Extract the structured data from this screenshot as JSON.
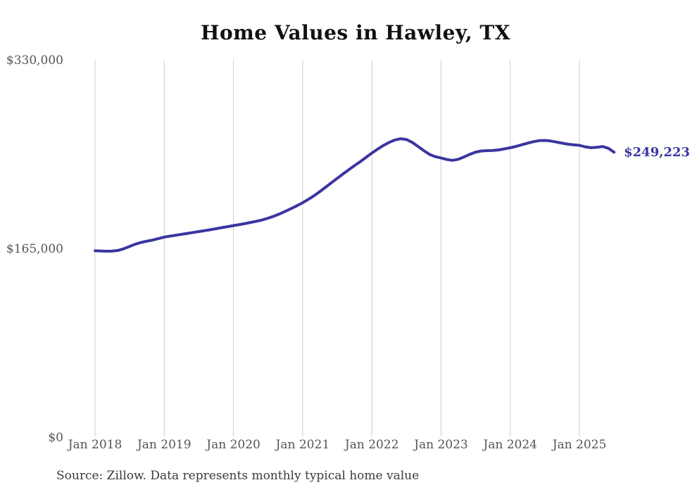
{
  "chart": {
    "title": "Home Values in Hawley, TX",
    "source": "Source: Zillow. Data represents monthly typical home value",
    "end_label": "$249,223",
    "colors": {
      "line": "#3a35a0",
      "grid": "#cccccc",
      "axis_text": "#555555",
      "title_text": "#111111",
      "source_text": "#3a3a3a"
    }
  },
  "chart_data": {
    "type": "line",
    "title": "Home Values in Hawley, TX",
    "xlabel": "",
    "ylabel": "",
    "unit": "USD",
    "grid": "vertical-only",
    "legend": "none",
    "ylim": [
      0,
      330000
    ],
    "y_ticks": [
      0,
      165000,
      330000
    ],
    "y_tick_labels": [
      "$0",
      "$165,000",
      "$330,000"
    ],
    "x_tick_labels": [
      "Jan 2018",
      "Jan 2019",
      "Jan 2020",
      "Jan 2021",
      "Jan 2022",
      "Jan 2023",
      "Jan 2024",
      "Jan 2025"
    ],
    "x_start_month": "2018-01",
    "x_end_month": "2025-07",
    "months_per_point": 1,
    "end_value": 249223,
    "series": [
      {
        "name": "Typical home value",
        "values": [
          163000,
          162800,
          162600,
          162700,
          163300,
          164800,
          166800,
          168800,
          170300,
          171400,
          172400,
          173700,
          175000,
          175800,
          176600,
          177400,
          178200,
          179000,
          179800,
          180600,
          181400,
          182300,
          183200,
          184100,
          185000,
          185900,
          186800,
          187800,
          188800,
          190000,
          191500,
          193200,
          195200,
          197500,
          199900,
          202400,
          205000,
          208000,
          211200,
          214800,
          218600,
          222500,
          226400,
          230200,
          233900,
          237500,
          241000,
          244700,
          248400,
          251900,
          255100,
          257800,
          259900,
          261000,
          260300,
          257800,
          254300,
          250600,
          247300,
          245300,
          244200,
          242800,
          242100,
          243000,
          245100,
          247400,
          249300,
          250300,
          250600,
          250700,
          251200,
          252100,
          253100,
          254300,
          255700,
          257100,
          258400,
          259300,
          259500,
          259000,
          258100,
          257100,
          256200,
          255600,
          255200,
          253900,
          253100,
          253500,
          254200,
          252600,
          249223
        ]
      }
    ]
  }
}
